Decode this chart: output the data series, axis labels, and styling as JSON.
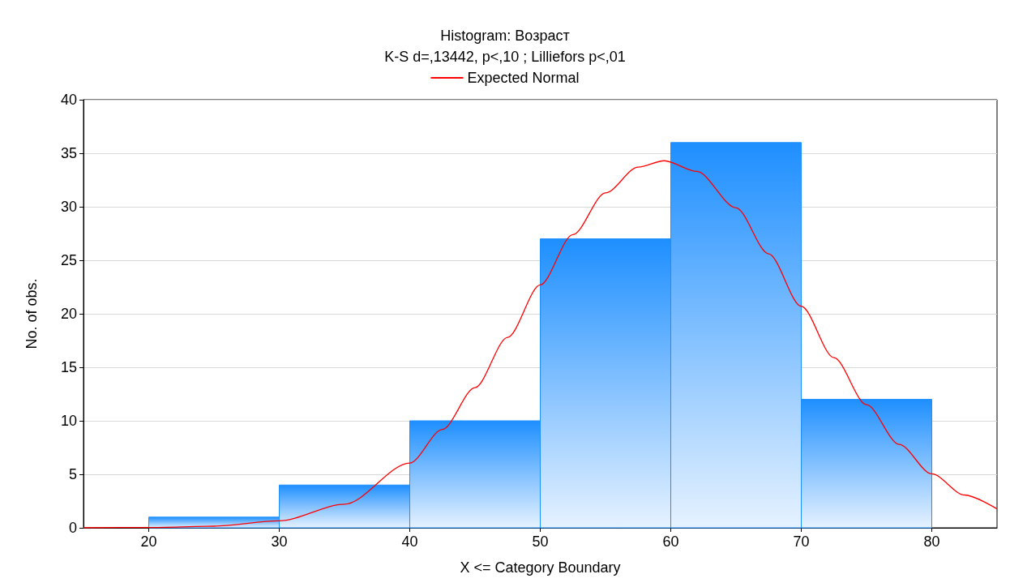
{
  "chart_data": {
    "type": "histogram",
    "title": "Histogram: Возраст",
    "subtitle": "K-S d=,13442, p<,10 ; Lilliefors p<,01",
    "xlabel": "X <= Category Boundary",
    "ylabel": "No. of obs.",
    "bins": [
      20,
      30,
      40,
      50,
      60,
      70,
      80
    ],
    "values": [
      1,
      4,
      10,
      27,
      36,
      12
    ],
    "color": "#1e8fff",
    "series": [
      {
        "type": "line",
        "name": "Expected Normal",
        "color": "#ff0000",
        "x": [
          15,
          20,
          25,
          30,
          35,
          40,
          42.5,
          45,
          47.5,
          50,
          52.5,
          55,
          57.5,
          59.5,
          62,
          65,
          67.5,
          70,
          72.5,
          75,
          77.5,
          80,
          82.5,
          85
        ],
        "values": [
          0,
          0.03,
          0.15,
          0.65,
          2.2,
          6.05,
          9.2,
          13.1,
          17.8,
          22.7,
          27.4,
          31.3,
          33.7,
          34.3,
          33.3,
          29.9,
          25.6,
          20.7,
          15.9,
          11.5,
          7.8,
          5.04,
          3.07,
          1.77
        ]
      }
    ],
    "xlim": [
      15,
      85
    ],
    "xticks": [
      20,
      30,
      40,
      50,
      60,
      70,
      80
    ],
    "ylim": [
      0,
      40
    ],
    "yticks": [
      0,
      5,
      10,
      15,
      20,
      25,
      30,
      35,
      40
    ],
    "grid": "y",
    "legend": "top",
    "line_style": "solid",
    "marker": "none"
  }
}
